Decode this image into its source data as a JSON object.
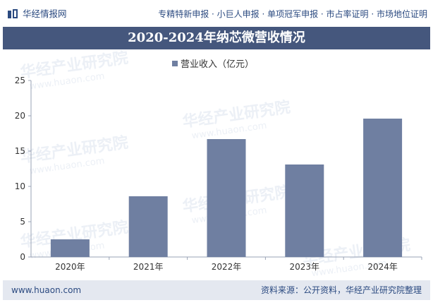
{
  "header": {
    "logo_text": "华经情报网",
    "tagline": "专精特新申报 · 小巨人申报 · 单项冠军申报 · 市占率证明 · 市场地位证明"
  },
  "title": "2020-2024年纳芯微营收情况",
  "watermark": {
    "text": "华经产业研究院",
    "url": "www.huaon.com"
  },
  "footer": {
    "site": "www.huaon.com",
    "source": "资料来源：公开资料，华经产业研究院整理"
  },
  "colors": {
    "bar": "#6f7fa1",
    "title_bg": "#45577d",
    "footer_bg": "#e4e8f0",
    "text": "#2b4a80"
  },
  "chart_data": {
    "type": "bar",
    "categories": [
      "2020年",
      "2021年",
      "2022年",
      "2023年",
      "2024年"
    ],
    "series": [
      {
        "name": "营业收入（亿元）",
        "values": [
          2.5,
          8.6,
          16.7,
          13.1,
          19.6
        ]
      }
    ],
    "ylim": [
      0,
      25
    ],
    "yticks": [
      0,
      5,
      10,
      15,
      20,
      25
    ],
    "grid": false,
    "legend": "top-center"
  }
}
